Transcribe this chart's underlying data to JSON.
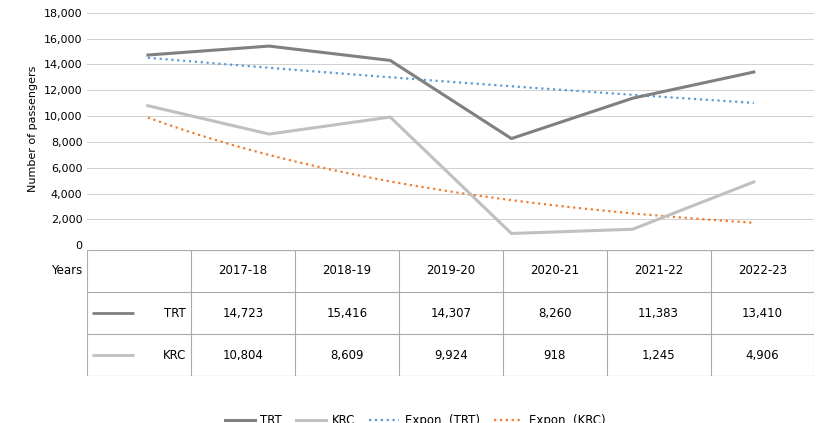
{
  "years": [
    "2017-18",
    "2018-19",
    "2019-20",
    "2020-21",
    "2021-22",
    "2022-23"
  ],
  "trt_values": [
    14723,
    15416,
    14307,
    8260,
    11383,
    13410
  ],
  "krc_values": [
    10804,
    8609,
    9924,
    918,
    1245,
    4906
  ],
  "trt_color": "#808080",
  "krc_color": "#c0c0c0",
  "expon_trt_color": "#5b9bd5",
  "expon_krc_color": "#ed7d31",
  "ylabel": "Number of passengers",
  "ylim": [
    0,
    18000
  ],
  "yticks": [
    0,
    2000,
    4000,
    6000,
    8000,
    10000,
    12000,
    14000,
    16000,
    18000
  ],
  "legend_labels": [
    "TRT",
    "KRC",
    "Expon. (TRT)",
    "Expon. (KRC)"
  ],
  "table_row_labels": [
    "TRT",
    "KRC"
  ],
  "table_values": [
    [
      "14,723",
      "15,416",
      "14,307",
      "8,260",
      "11,383",
      "13,410"
    ],
    [
      "10,804",
      "8,609",
      "9,924",
      "918",
      "1,245",
      "4,906"
    ]
  ],
  "background_color": "#ffffff",
  "grid_color": "#d0d0d0",
  "table_border_color": "#aaaaaa",
  "figsize": [
    8.31,
    4.23
  ],
  "dpi": 100
}
